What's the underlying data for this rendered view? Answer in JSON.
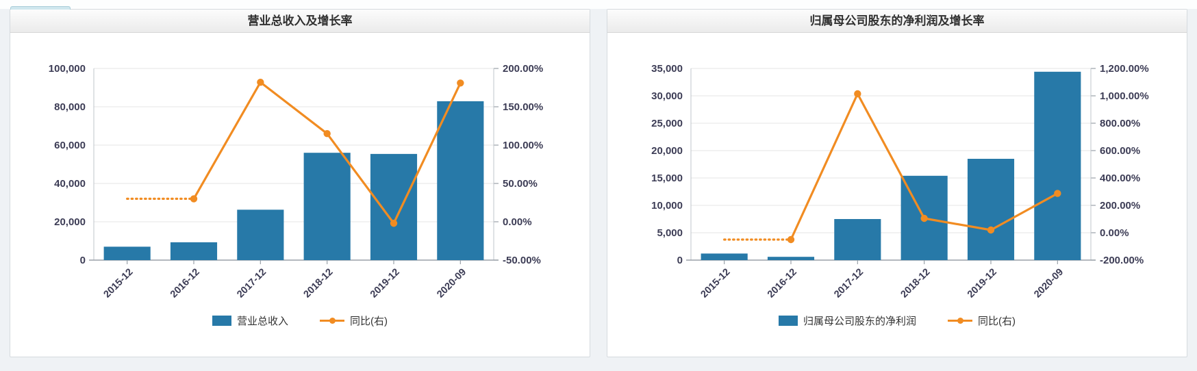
{
  "page": {
    "background": "#eff2f5",
    "panel_border": "#d5dade"
  },
  "chart_data": [
    {
      "type": "bar+line",
      "title": "营业总收入及增长率",
      "categories": [
        "2015-12",
        "2016-12",
        "2017-12",
        "2018-12",
        "2019-12",
        "2020-09"
      ],
      "series": [
        {
          "name": "营业总收入",
          "type": "bar",
          "axis": "left",
          "values": [
            7000,
            9300,
            26300,
            56000,
            55400,
            82900
          ]
        },
        {
          "name": "同比(右)",
          "type": "line",
          "axis": "right",
          "leading_dotted": true,
          "values": [
            null,
            30,
            182,
            115,
            -2,
            181
          ]
        }
      ],
      "left_axis": {
        "min": 0,
        "max": 100000,
        "tick_labels": [
          "0",
          "20,000",
          "40,000",
          "60,000",
          "80,000",
          "100,000"
        ]
      },
      "right_axis": {
        "min": -50,
        "max": 200,
        "tick_labels": [
          "-50.00%",
          "0.00%",
          "50.00%",
          "100.00%",
          "150.00%",
          "200.00%"
        ]
      },
      "colors": {
        "bar": "#2779a8",
        "line": "#f18c22"
      },
      "grid": true,
      "legend_position": "bottom"
    },
    {
      "type": "bar+line",
      "title": "归属母公司股东的净利润及增长率",
      "categories": [
        "2015-12",
        "2016-12",
        "2017-12",
        "2018-12",
        "2019-12",
        "2020-09"
      ],
      "series": [
        {
          "name": "归属母公司股东的净利润",
          "type": "bar",
          "axis": "left",
          "values": [
            1200,
            600,
            7500,
            15400,
            18500,
            34400
          ]
        },
        {
          "name": "同比(右)",
          "type": "line",
          "axis": "right",
          "leading_dotted": true,
          "values": [
            null,
            -50,
            1015,
            105,
            20,
            287
          ]
        }
      ],
      "left_axis": {
        "min": 0,
        "max": 35000,
        "tick_labels": [
          "0",
          "5,000",
          "10,000",
          "15,000",
          "20,000",
          "25,000",
          "30,000",
          "35,000"
        ]
      },
      "right_axis": {
        "min": -200,
        "max": 1200,
        "tick_labels": [
          "-200.00%",
          "0.00%",
          "200.00%",
          "400.00%",
          "600.00%",
          "800.00%",
          "1,000.00%",
          "1,200.00%"
        ]
      },
      "colors": {
        "bar": "#2779a8",
        "line": "#f18c22"
      },
      "grid": true,
      "legend_position": "bottom"
    }
  ],
  "style": {
    "grid_color": "#e4e4e4",
    "axis_color": "#bfc5cb",
    "baseline_color": "#9aa1a8",
    "tick_text_color": "#3c3c55"
  }
}
